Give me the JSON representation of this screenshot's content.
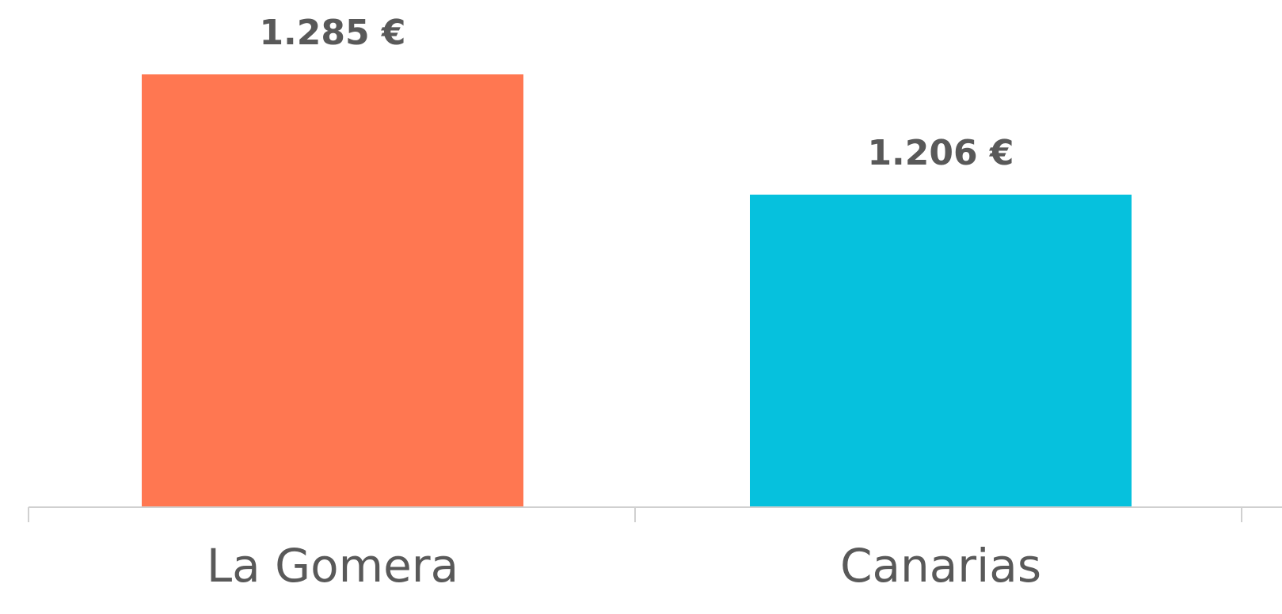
{
  "chart_data": {
    "type": "bar",
    "categories": [
      "La Gomera",
      "Canarias"
    ],
    "values": [
      1285,
      1206
    ],
    "data_labels": [
      "1.285 €",
      "1.206 €"
    ],
    "colors": [
      "#FF7751",
      "#06C1DD"
    ],
    "title": "",
    "xlabel": "",
    "ylabel": "",
    "grid": false,
    "legend": "none",
    "axis_color": "#D0D0D0",
    "label_color": "#595959"
  }
}
